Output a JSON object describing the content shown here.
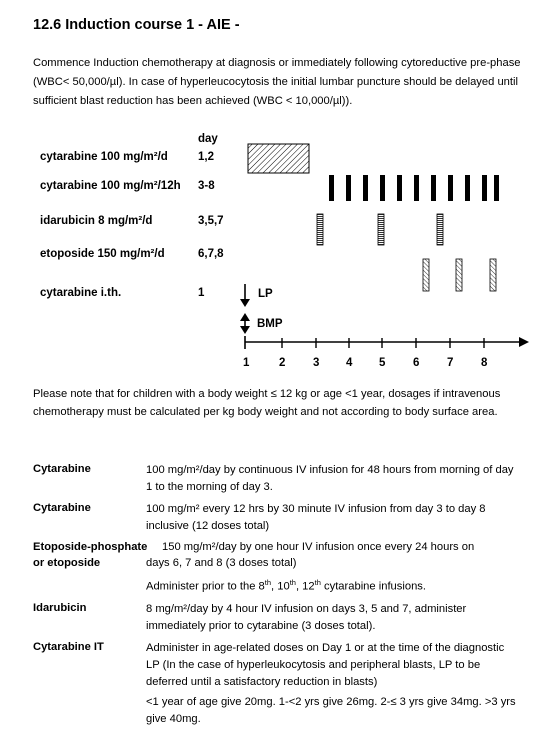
{
  "title": "12.6 Induction course 1 - AIE -",
  "intro": "Commence Induction chemotherapy at diagnosis or immediately following cytoreductive pre-phase (WBC< 50,000/µl).  In case of hyperleucocytosis the initial lumbar puncture should be delayed until sufficient blast reduction has been achieved (WBC < 10,000/µl)).",
  "schedule": {
    "day_header": "day",
    "rows": [
      {
        "drug": "cytarabine 100 mg/m²/d",
        "days": "1,2"
      },
      {
        "drug": "cytarabine 100 mg/m²/12h",
        "days": "3-8"
      },
      {
        "drug": "idarubicin  8 mg/m²/d",
        "days": "3,5,7"
      },
      {
        "drug": "etoposide  150 mg/m²/d",
        "days": "6,7,8"
      },
      {
        "drug": "cytarabine i.th.",
        "days": "1"
      }
    ],
    "lp_label": "LP",
    "bmp_label": "BMP",
    "axis_ticks": [
      "1",
      "2",
      "3",
      "4",
      "5",
      "6",
      "7",
      "8"
    ]
  },
  "note": "Please note that for children with a body weight ≤ 12 kg or age <1 year, dosages if intravenous chemotherapy must be calculated per kg body weight and not according to body surface area.",
  "table": {
    "cytarabine1_name": "Cytarabine",
    "cytarabine1_desc": "100 mg/m²/day by continuous IV infusion for 48 hours from morning of day 1 to the morning of day 3.",
    "cytarabine2_name": "Cytarabine",
    "cytarabine2_desc": "100 mg/m² every 12 hrs by 30 minute IV infusion from day 3 to day 8 inclusive (12 doses total)",
    "etoposide_name_1": "Etoposide-phosphate",
    "etoposide_name_2": "or etoposide",
    "etoposide_desc_1": "150 mg/m²/day by one hour IV infusion once every 24 hours on",
    "etoposide_desc_2": "days 6, 7 and 8 (3 doses total)",
    "etoposide_admin_pre": "Administer prior to the 8",
    "etoposide_admin_sup1": "th",
    "etoposide_admin_mid1": ", 10",
    "etoposide_admin_sup2": "th",
    "etoposide_admin_mid2": ", 12",
    "etoposide_admin_sup3": "th",
    "etoposide_admin_post": " cytarabine infusions.",
    "idarubicin_name": "Idarubicin",
    "idarubicin_desc": "8 mg/m²/day by 4 hour IV infusion on days 3, 5 and 7, administer immediately prior to cytarabine (3 doses total).",
    "cytit_name": "Cytarabine IT",
    "cytit_desc": "Administer in age-related doses on Day 1 or at the time of the diagnostic LP (In the case of hyperleukocytosis and peripheral blasts, LP to be deferred until a satisfactory reduction in blasts)",
    "cytit_doses": "<1 year of age give 20mg. 1-<2 yrs give 26mg.  2-≤ 3 yrs give 34mg. >3 yrs give 40mg."
  }
}
